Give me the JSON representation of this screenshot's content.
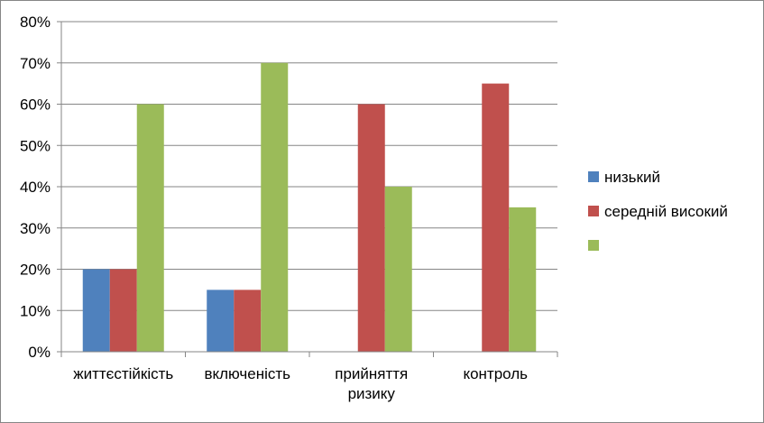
{
  "chart_data": {
    "type": "bar",
    "categories": [
      [
        "життєстійкість"
      ],
      [
        "включеність"
      ],
      [
        "прийняття",
        "ризику"
      ],
      [
        "контроль"
      ]
    ],
    "series": [
      {
        "name": "низький",
        "values": [
          20,
          15,
          0,
          0
        ],
        "color": "#4F81BD"
      },
      {
        "name": "середній високий",
        "values": [
          20,
          15,
          60,
          65
        ],
        "color": "#C0504D"
      },
      {
        "name": "",
        "values": [
          60,
          70,
          40,
          35
        ],
        "color": "#9BBB59"
      }
    ],
    "yticks": [
      "0%",
      "10%",
      "20%",
      "30%",
      "40%",
      "50%",
      "60%",
      "70%",
      "80%"
    ],
    "ylim": [
      0,
      80
    ],
    "grid": true,
    "legend_position": "right",
    "title": "",
    "xlabel": "",
    "ylabel": ""
  }
}
